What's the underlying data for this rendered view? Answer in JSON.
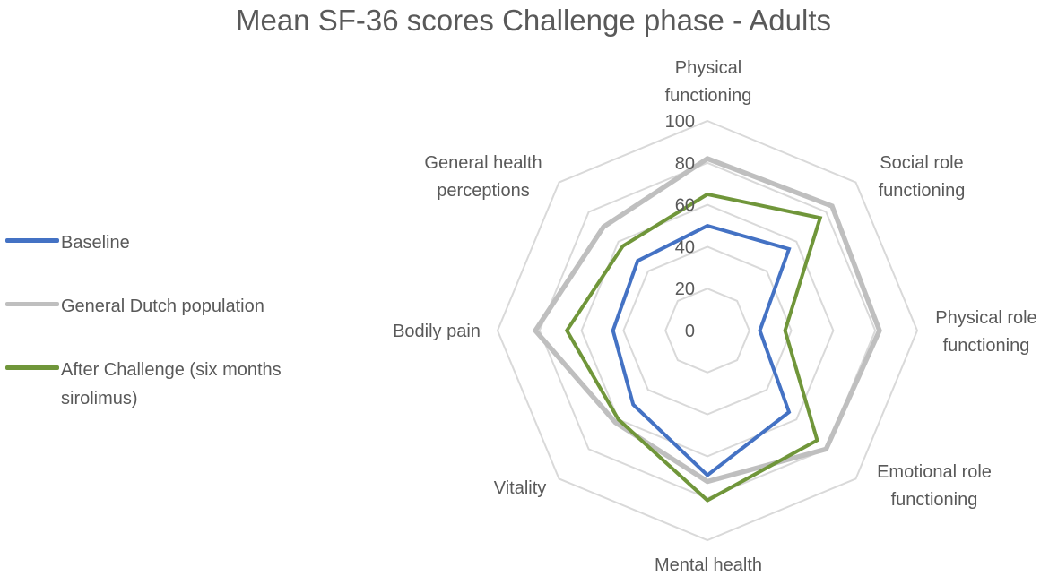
{
  "chart_data": {
    "type": "radar",
    "title": "Mean SF-36 scores Challenge phase - Adults",
    "axes": [
      "Physical functioning",
      "Social role functioning",
      "Physical role functioning",
      "Emotional role functioning",
      "Mental health",
      "Vitality",
      "Bodily pain",
      "General health perceptions"
    ],
    "axis_label_lines": [
      [
        "Physical",
        "functioning"
      ],
      [
        "Social role",
        "functioning"
      ],
      [
        "Physical role",
        "functioning"
      ],
      [
        "Emotional role",
        "functioning"
      ],
      [
        "Mental health"
      ],
      [
        "Vitality"
      ],
      [
        "Bodily pain"
      ],
      [
        "General health",
        "perceptions"
      ]
    ],
    "range": [
      0,
      100
    ],
    "ticks": [
      0,
      20,
      40,
      60,
      80,
      100
    ],
    "tick_labels": [
      "0",
      "20",
      "40",
      "60",
      "80",
      "100"
    ],
    "grid": true,
    "legend_position": "left",
    "series": [
      {
        "name": "Baseline",
        "color": "#4472C4",
        "values": [
          50,
          55,
          25,
          55,
          69,
          50,
          45,
          47
        ]
      },
      {
        "name": "General Dutch population",
        "color": "#BFBFBF",
        "values": [
          82,
          84,
          82,
          80,
          72,
          62,
          82,
          70
        ]
      },
      {
        "name": "After Challenge (six months sirolimus)",
        "color": "#70963A",
        "values": [
          65,
          76,
          37,
          74,
          81,
          60,
          67,
          57
        ]
      }
    ]
  },
  "legend": {
    "items": [
      {
        "label": "Baseline",
        "color": "#4472C4"
      },
      {
        "label": "General Dutch population",
        "color": "#BFBFBF"
      },
      {
        "label": "After Challenge (six months sirolimus)",
        "color": "#70963A"
      }
    ]
  },
  "colors": {
    "grid": "#D9D9D9",
    "text": "#595959"
  }
}
